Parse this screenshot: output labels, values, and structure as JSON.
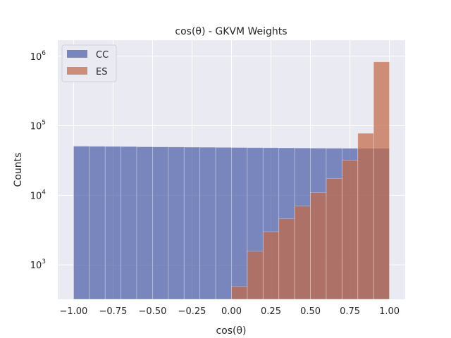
{
  "chart_data": {
    "type": "bar",
    "title": "cos(θ) - GKVM Weights",
    "xlabel": "cos(θ)",
    "ylabel": "Counts",
    "xlim": [
      -1.1,
      1.1
    ],
    "ylim": [
      320,
      1700000
    ],
    "y_scale": "log",
    "grid": true,
    "legend_position": "top-left",
    "x_ticks": [
      -1.0,
      -0.75,
      -0.5,
      -0.25,
      0.0,
      0.25,
      0.5,
      0.75,
      1.0
    ],
    "x_tick_labels": [
      "−1.00",
      "−0.75",
      "−0.50",
      "−0.25",
      "0.00",
      "0.25",
      "0.50",
      "0.75",
      "1.00"
    ],
    "y_ticks": [
      1000,
      10000,
      100000,
      1000000
    ],
    "y_tick_labels": [
      {
        "base": "10",
        "exp": "3"
      },
      {
        "base": "10",
        "exp": "4"
      },
      {
        "base": "10",
        "exp": "5"
      },
      {
        "base": "10",
        "exp": "6"
      }
    ],
    "bin_edges": [
      -1.0,
      -0.9,
      -0.8,
      -0.7,
      -0.6,
      -0.5,
      -0.4,
      -0.3,
      -0.2,
      -0.1,
      0.0,
      0.1,
      0.2,
      0.3,
      0.4,
      0.5,
      0.6,
      0.7,
      0.8,
      0.9,
      1.0
    ],
    "series": [
      {
        "name": "CC",
        "color": "#4c5fa8",
        "values": [
          50800,
          50600,
          50400,
          50200,
          49800,
          49600,
          49400,
          49200,
          49000,
          48800,
          48600,
          48400,
          48200,
          48000,
          47800,
          47600,
          47500,
          47400,
          47300,
          47200
        ]
      },
      {
        "name": "ES",
        "color": "#c46a45",
        "values": [
          0,
          0,
          0,
          0,
          0,
          0,
          0,
          0,
          0,
          0,
          490,
          1570,
          3000,
          4600,
          7000,
          10900,
          17500,
          32000,
          78000,
          830000
        ]
      }
    ]
  }
}
